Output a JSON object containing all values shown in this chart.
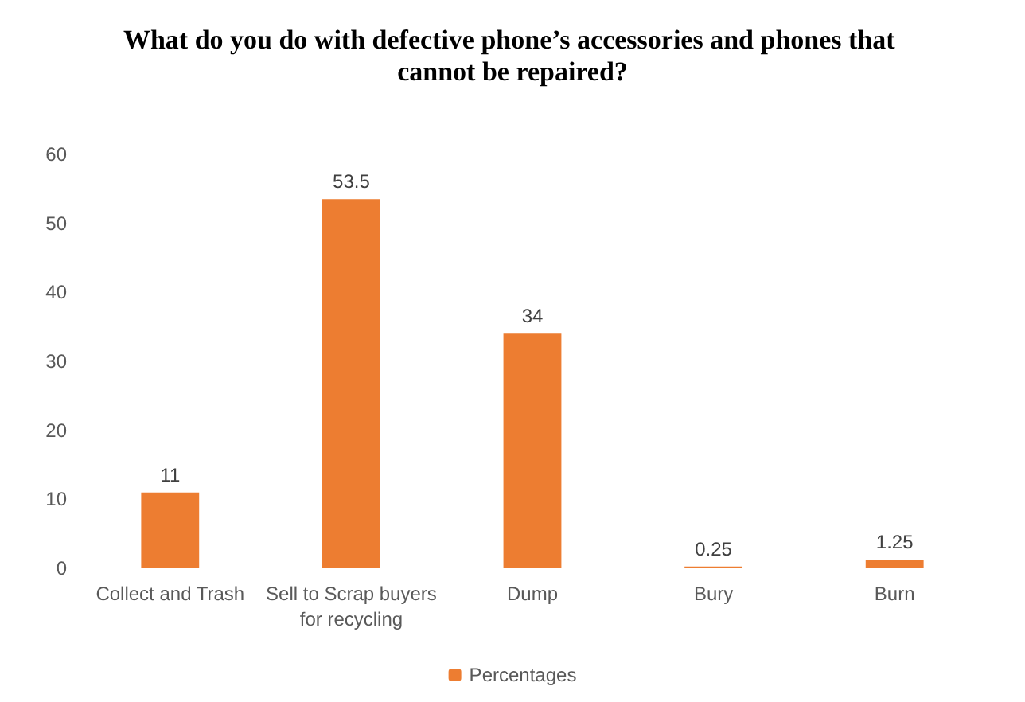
{
  "chart_data": {
    "type": "bar",
    "title": "What do you do with defective phone’s accessories and phones that cannot be repaired?",
    "categories": [
      "Collect and Trash",
      "Sell to Scrap buyers\nfor recycling",
      "Dump",
      "Bury",
      "Burn"
    ],
    "series": [
      {
        "name": "Percentages",
        "color": "#ed7d31",
        "values": [
          11,
          53.5,
          34,
          0.25,
          1.25
        ]
      }
    ],
    "ylim": [
      0,
      60
    ],
    "yticks": [
      0,
      10,
      20,
      30,
      40,
      50,
      60
    ],
    "grid": false,
    "legend": "bottom",
    "data_labels": true
  }
}
